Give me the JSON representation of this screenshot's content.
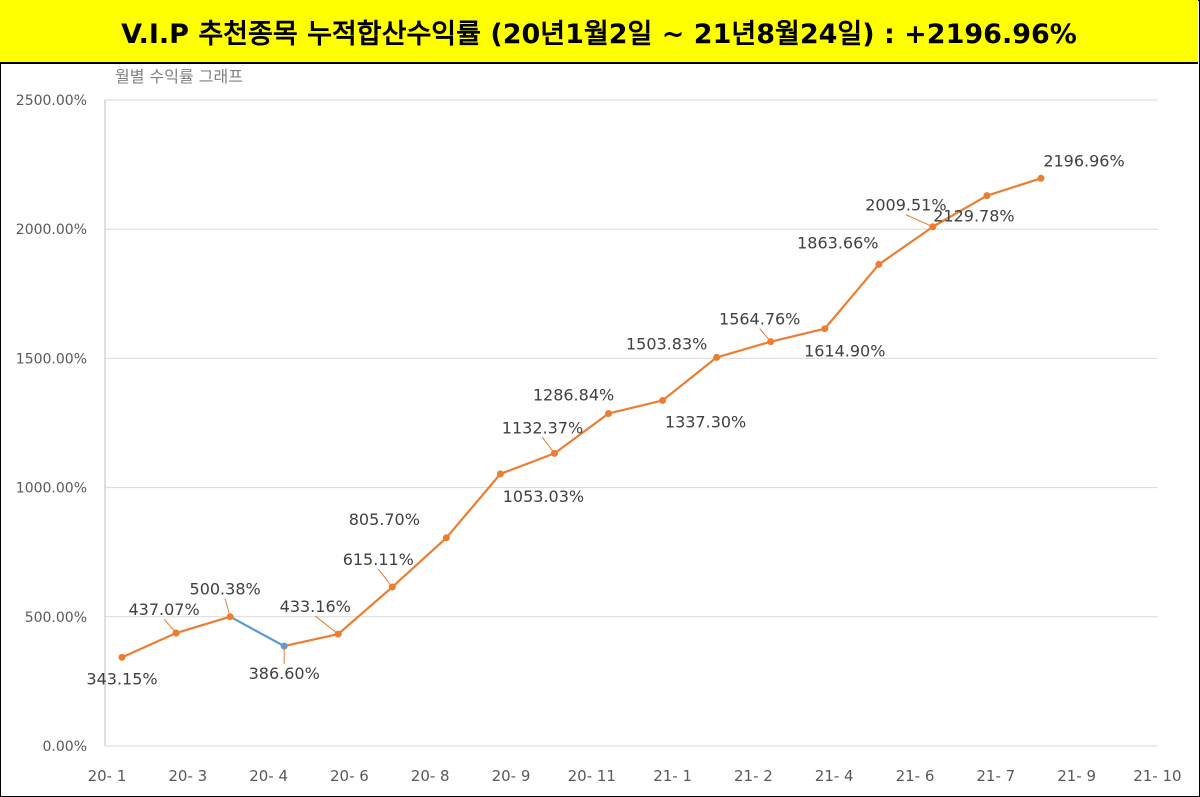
{
  "header": {
    "title": "V.I.P 추천종목 누적합산수익률 (20년1월2일 ~ 21년8월24일) : +2196.96%",
    "background_color": "#ffff00"
  },
  "chart_data": {
    "type": "line",
    "title": "월별 수익률 그래프",
    "xlabel": "",
    "ylabel": "",
    "ylim": [
      0,
      2500
    ],
    "y_tick_values": [
      0,
      500,
      1000,
      1500,
      2000,
      2500
    ],
    "y_tick_labels": [
      "0.00%",
      "500.00%",
      "1000.00%",
      "1500.00%",
      "2000.00%",
      "2500.00%"
    ],
    "x_tick_labels": [
      "20- 1",
      "20- 3",
      "20- 4",
      "20- 6",
      "20- 8",
      "20- 9",
      "20- 11",
      "21- 1",
      "21- 2",
      "21- 4",
      "21- 6",
      "21- 7",
      "21- 9",
      "21- 10"
    ],
    "grid": true,
    "legend": "none",
    "line_color": "#ed7d31",
    "decline_segment_color": "#5b9bd5",
    "series": [
      {
        "values": [
          343.15,
          437.07,
          500.38,
          386.6,
          433.16,
          615.11,
          805.7,
          1053.03,
          1132.37,
          1286.84,
          1337.3,
          1503.83,
          1564.76,
          1614.9,
          1863.66,
          2009.51,
          2129.78,
          2196.96
        ],
        "data_labels": [
          "343.15%",
          "437.07%",
          "500.38%",
          "386.60%",
          "433.16%",
          "615.11%",
          "805.70%",
          "1053.03%",
          "1132.37%",
          "1286.84%",
          "1337.30%",
          "1503.83%",
          "1564.76%",
          "1614.90%",
          "1863.66%",
          "2009.51%",
          "2129.78%",
          "2196.96%"
        ]
      }
    ]
  }
}
